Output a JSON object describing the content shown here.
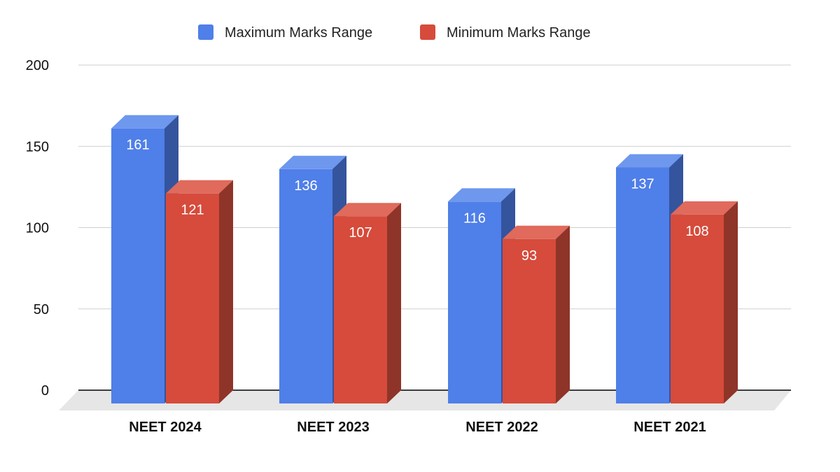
{
  "chart_data": {
    "type": "bar",
    "style": "3d-clustered-column",
    "categories": [
      "NEET 2024",
      "NEET 2023",
      "NEET 2022",
      "NEET 2021"
    ],
    "series": [
      {
        "name": "Maximum Marks Range",
        "values": [
          161,
          136,
          116,
          137
        ],
        "color": "#4f7fe8",
        "side_color": "#35549e",
        "top_color": "#6e97ee"
      },
      {
        "name": "Minimum Marks Range",
        "values": [
          121,
          107,
          93,
          108
        ],
        "color": "#d64b3b",
        "side_color": "#8f3428",
        "top_color": "#e06a5c"
      }
    ],
    "yticks": [
      0,
      50,
      100,
      150,
      200
    ],
    "ylim": [
      0,
      200
    ],
    "title": "",
    "xlabel": "",
    "ylabel": "",
    "grid": true,
    "legend_position": "top-center",
    "data_labels": true
  }
}
